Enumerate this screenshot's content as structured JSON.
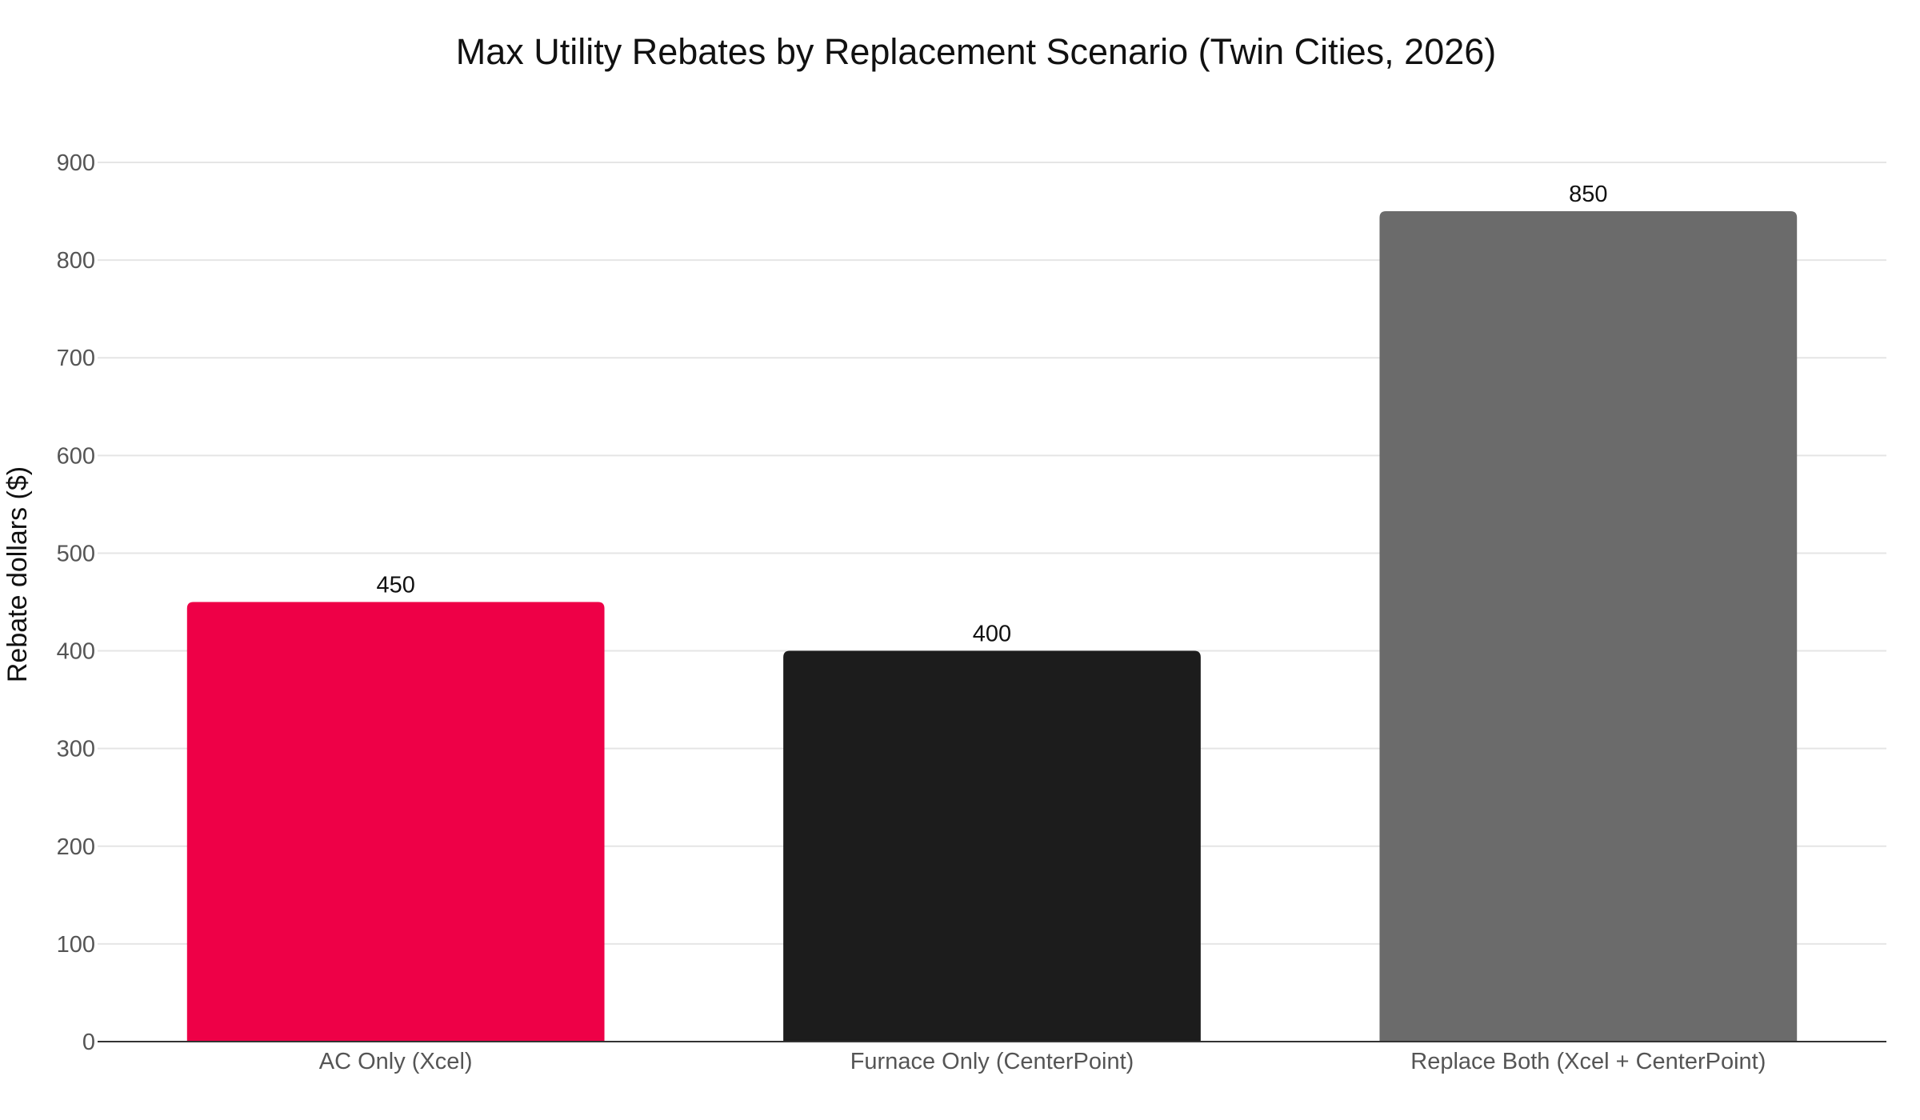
{
  "chart_data": {
    "type": "bar",
    "title": "Max Utility Rebates by Replacement Scenario (Twin Cities, 2026)",
    "xlabel": "",
    "ylabel": "Rebate dollars ($)",
    "categories": [
      "AC Only (Xcel)",
      "Furnace Only (CenterPoint)",
      "Replace Both (Xcel + CenterPoint)"
    ],
    "values": [
      450,
      400,
      850
    ],
    "value_labels": [
      "450",
      "400",
      "850"
    ],
    "colors": [
      "#ee0047",
      "#1c1c1c",
      "#6b6b6b"
    ],
    "ylim": [
      0,
      900
    ],
    "yticks": [
      0,
      100,
      200,
      300,
      400,
      500,
      600,
      700,
      800,
      900
    ],
    "ytick_labels": [
      "0",
      "100",
      "200",
      "300",
      "400",
      "500",
      "600",
      "700",
      "800",
      "900"
    ],
    "grid": true,
    "legend": "none"
  }
}
